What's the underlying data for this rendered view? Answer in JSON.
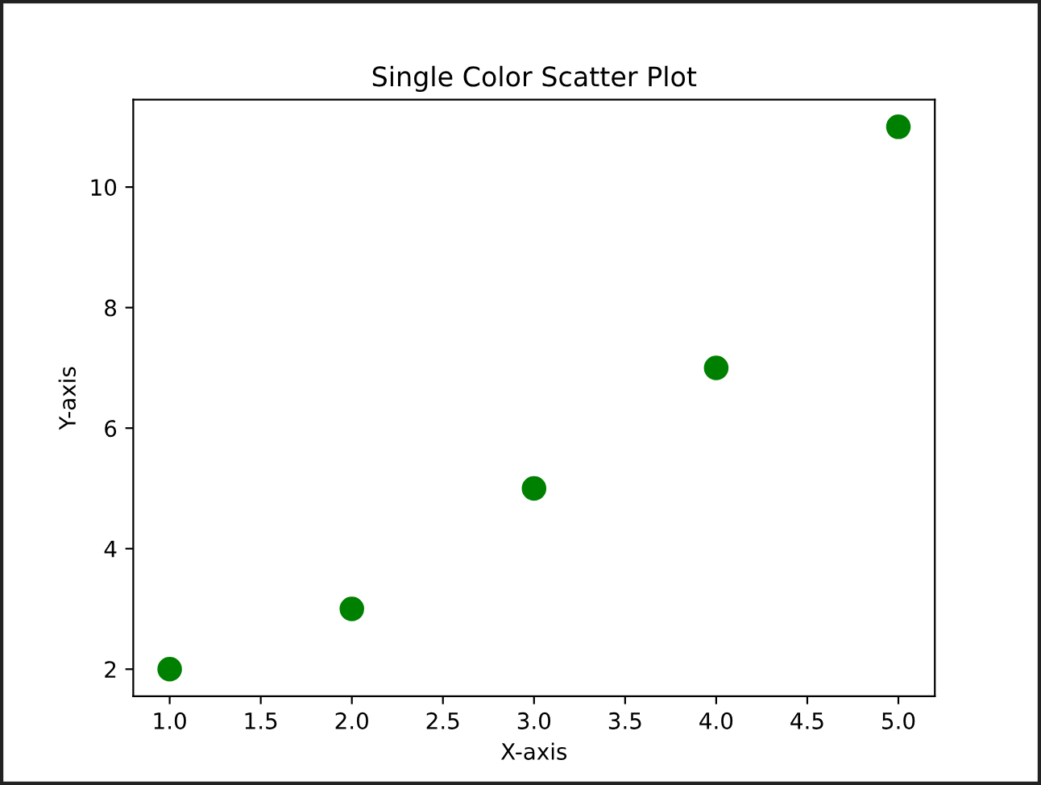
{
  "chart_data": {
    "type": "scatter",
    "title": "Single Color Scatter Plot",
    "xlabel": "X-axis",
    "ylabel": "Y-axis",
    "x": [
      1,
      2,
      3,
      4,
      5
    ],
    "series": [
      {
        "color": "#008000",
        "values": [
          2,
          3,
          5,
          7,
          11
        ]
      }
    ],
    "marker": "circle",
    "grid": false,
    "xlim": [
      0.8,
      5.2
    ],
    "ylim": [
      1.55,
      11.45
    ],
    "xticks": [
      {
        "value": 1,
        "label": "1.0"
      },
      {
        "value": 1.5,
        "label": "1.5"
      },
      {
        "value": 2,
        "label": "2.0"
      },
      {
        "value": 2.5,
        "label": "2.5"
      },
      {
        "value": 3,
        "label": "3.0"
      },
      {
        "value": 3.5,
        "label": "3.5"
      },
      {
        "value": 4,
        "label": "4.0"
      },
      {
        "value": 4.5,
        "label": "4.5"
      },
      {
        "value": 5,
        "label": "5.0"
      }
    ],
    "yticks": [
      2,
      4,
      6,
      8,
      10
    ]
  }
}
